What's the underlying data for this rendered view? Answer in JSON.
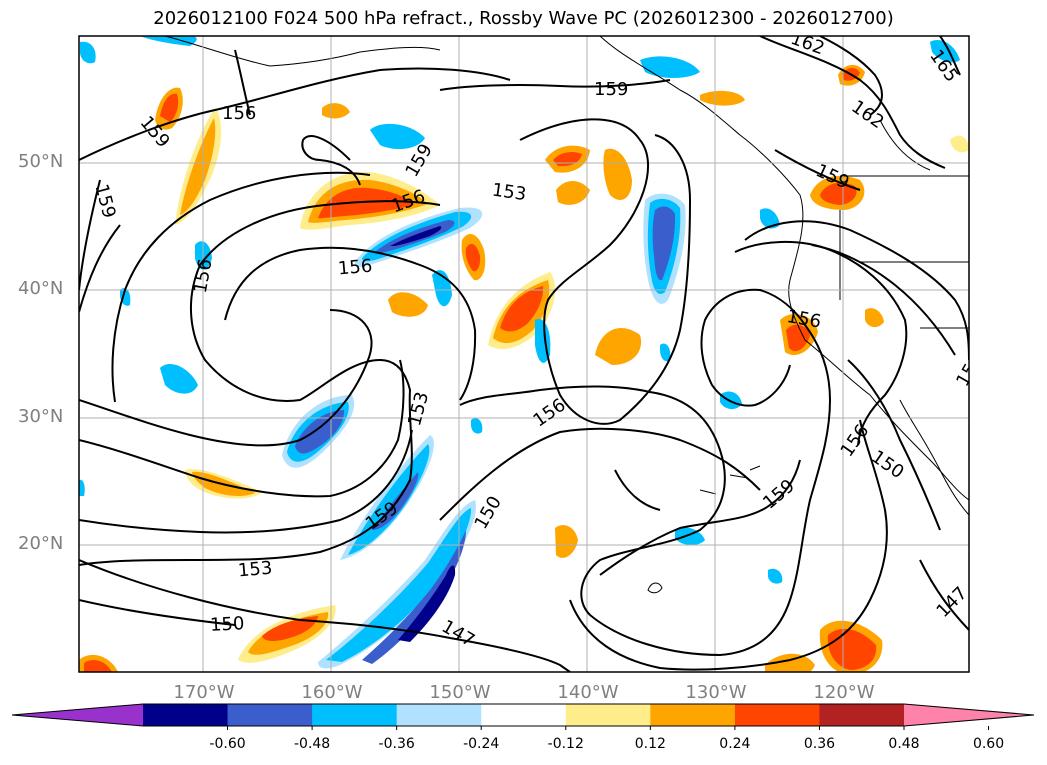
{
  "title": "2026012100 F024 500 hPa refract., Rossby Wave PC (2026012300 - 2026012700)",
  "lat_labels": [
    "50°N",
    "40°N",
    "30°N",
    "20°N"
  ],
  "lon_labels": [
    "170°W",
    "160°W",
    "150°W",
    "140°W",
    "130°W",
    "120°W"
  ],
  "contour_labels": [
    "156",
    "159",
    "156",
    "159",
    "162",
    "165",
    "162",
    "159",
    "153",
    "159",
    "156",
    "159",
    "156",
    "156",
    "153",
    "159",
    "156",
    "150",
    "150",
    "159",
    "156",
    "150",
    "153",
    "150",
    "147",
    "147",
    "15"
  ],
  "colorbar": {
    "tick_labels": [
      "-0.60",
      "-0.48",
      "-0.36",
      "-0.24",
      "-0.12",
      "0.12",
      "0.24",
      "0.36",
      "0.48",
      "0.60"
    ],
    "colors": [
      "#9932cc",
      "#00008b",
      "#3a5fcd",
      "#00bfff",
      "#b0e2ff",
      "#ffffff",
      "#ffec8b",
      "#ffa500",
      "#ff4500",
      "#b22222",
      "#ff82ab"
    ]
  }
}
